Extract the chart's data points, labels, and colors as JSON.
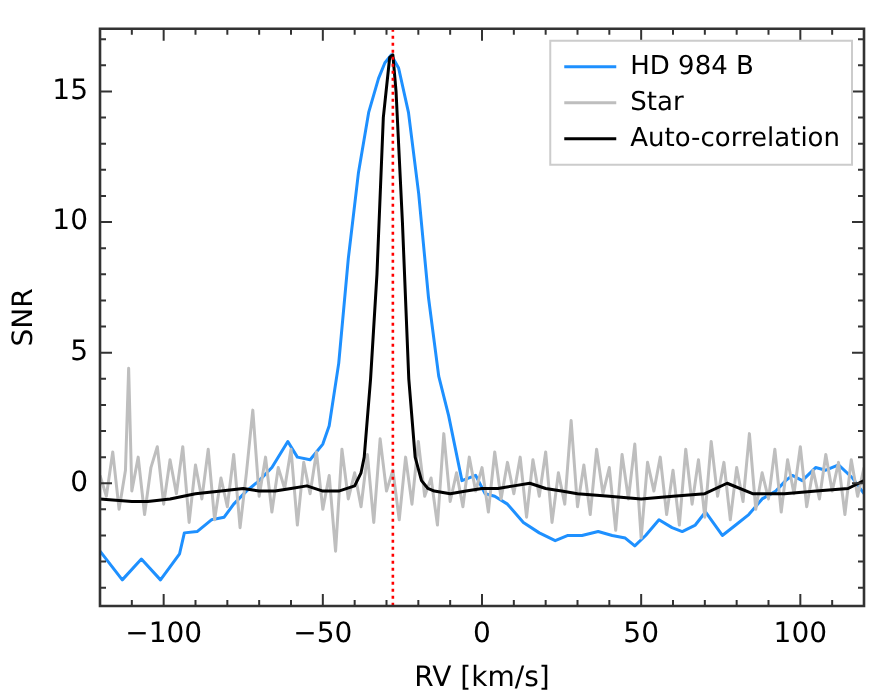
{
  "chart_data": {
    "type": "line",
    "xlabel": "RV [km/s]",
    "ylabel": "SNR",
    "xlim": [
      -120,
      120
    ],
    "ylim": [
      -4.7,
      17.4
    ],
    "xticks": [
      {
        "value": -120,
        "label": null
      },
      {
        "value": -110,
        "label": null
      },
      {
        "value": -100,
        "label": "−100"
      },
      {
        "value": -90,
        "label": null
      },
      {
        "value": -80,
        "label": null
      },
      {
        "value": -70,
        "label": null
      },
      {
        "value": -60,
        "label": null
      },
      {
        "value": -50,
        "label": "−50"
      },
      {
        "value": -40,
        "label": null
      },
      {
        "value": -30,
        "label": null
      },
      {
        "value": -20,
        "label": null
      },
      {
        "value": -10,
        "label": null
      },
      0,
      {
        "value": 10,
        "label": null
      },
      {
        "value": 20,
        "label": null
      },
      {
        "value": 30,
        "label": null
      },
      {
        "value": 40,
        "label": null
      },
      50,
      {
        "value": 60,
        "label": null
      },
      {
        "value": 70,
        "label": null
      },
      {
        "value": 80,
        "label": null
      },
      {
        "value": 90,
        "label": null
      },
      100,
      {
        "value": 110,
        "label": null
      },
      {
        "value": 120,
        "label": null
      }
    ],
    "yticks": [
      {
        "value": -4,
        "label": null
      },
      {
        "value": -3,
        "label": null
      },
      {
        "value": -2,
        "label": null
      },
      {
        "value": -1,
        "label": null
      },
      0,
      {
        "value": 1,
        "label": null
      },
      {
        "value": 2,
        "label": null
      },
      {
        "value": 3,
        "label": null
      },
      {
        "value": 4,
        "label": null
      },
      5,
      {
        "value": 6,
        "label": null
      },
      {
        "value": 7,
        "label": null
      },
      {
        "value": 8,
        "label": null
      },
      {
        "value": 9,
        "label": null
      },
      10,
      {
        "value": 11,
        "label": null
      },
      {
        "value": 12,
        "label": null
      },
      {
        "value": 13,
        "label": null
      },
      {
        "value": 14,
        "label": null
      },
      15,
      {
        "value": 16,
        "label": null
      },
      {
        "value": 17,
        "label": null
      }
    ],
    "grid": false,
    "legend": "top right",
    "marker": "none",
    "line_style": "solid",
    "series": [
      {
        "name": "HD 984 B",
        "color": "#1e90ff",
        "x": [
          -120,
          -113,
          -107,
          -101,
          -95,
          -93.5,
          -89.5,
          -85,
          -81,
          -78,
          -74,
          -70,
          -66,
          -61,
          -58,
          -54,
          -50,
          -48,
          -45,
          -42,
          -38.8,
          -35.6,
          -32.5,
          -30.5,
          -28.5,
          -26.2,
          -23.1,
          -19.9,
          -16.8,
          -13.6,
          -10.5,
          -6.3,
          -2,
          1,
          4,
          8,
          13,
          18,
          23,
          27,
          31.4,
          36.5,
          40.9,
          45,
          48,
          51.4,
          55.6,
          59.7,
          62.9,
          67,
          70.2,
          75.5,
          79.7,
          83.8,
          88,
          92.3,
          95.4,
          97.5,
          100.6,
          104.8,
          108,
          112,
          116.4,
          120
        ],
        "values": [
          -2.6,
          -3.7,
          -2.9,
          -3.7,
          -2.7,
          -1.9,
          -1.85,
          -1.4,
          -1.3,
          -0.8,
          -0.3,
          0.1,
          0.6,
          1.6,
          1.0,
          0.9,
          1.5,
          2.2,
          4.6,
          8.6,
          11.9,
          14.2,
          15.5,
          16.1,
          16.4,
          15.9,
          14.2,
          11.1,
          7.1,
          4.1,
          2.6,
          0.1,
          0.3,
          -0.4,
          -0.5,
          -0.8,
          -1.5,
          -1.9,
          -2.2,
          -2.0,
          -2.0,
          -1.85,
          -2.0,
          -2.1,
          -2.4,
          -2.0,
          -1.4,
          -1.7,
          -1.85,
          -1.6,
          -1.1,
          -2.0,
          -1.6,
          -1.2,
          -0.6,
          -0.3,
          0.1,
          0.3,
          0.1,
          0.6,
          0.5,
          0.7,
          0.2,
          -0.4
        ]
      },
      {
        "name": "Star",
        "color": "#bebebe",
        "x": [
          -120,
          -118,
          -116,
          -114,
          -112,
          -111,
          -110,
          -108,
          -106,
          -104,
          -102,
          -100,
          -98,
          -96,
          -94,
          -92,
          -90,
          -88,
          -86,
          -84,
          -82,
          -80,
          -78,
          -76,
          -74,
          -72,
          -70,
          -68,
          -66,
          -64,
          -62,
          -60,
          -58,
          -56,
          -54,
          -52,
          -50,
          -48,
          -46,
          -44,
          -42,
          -40,
          -38,
          -36,
          -34,
          -32,
          -30,
          -28,
          -26,
          -24,
          -22,
          -20,
          -18,
          -16,
          -14,
          -12,
          -10,
          -8,
          -6,
          -4,
          -2,
          0,
          2,
          4,
          6,
          8,
          10,
          12,
          14,
          16,
          18,
          20,
          22,
          24,
          26,
          28,
          30,
          32,
          34,
          36,
          38,
          40,
          42,
          44,
          46,
          48,
          50,
          52,
          54,
          56,
          58,
          60,
          62,
          64,
          66,
          68,
          70,
          72,
          74,
          76,
          78,
          80,
          82,
          84,
          86,
          88,
          90,
          92,
          94,
          96,
          98,
          100,
          102,
          104,
          106,
          108,
          110,
          112,
          114,
          116,
          118,
          120
        ],
        "values": [
          0.3,
          -0.5,
          1.2,
          -1.0,
          0.5,
          4.4,
          -0.3,
          1.0,
          -1.2,
          0.6,
          1.4,
          -0.8,
          0.9,
          -0.4,
          1.4,
          -1.5,
          0.7,
          -0.6,
          1.3,
          -1.4,
          0.2,
          -0.9,
          1.1,
          -1.7,
          0.4,
          2.8,
          -0.5,
          1.0,
          -1.1,
          0.6,
          -0.2,
          1.3,
          -1.6,
          0.8,
          -0.4,
          1.2,
          -1.0,
          0.3,
          -2.6,
          1.3,
          -0.6,
          0.4,
          -0.9,
          1.1,
          -1.5,
          1.7,
          -0.3,
          0.5,
          -1.4,
          1.0,
          -0.8,
          1.6,
          -0.5,
          0.2,
          -1.6,
          1.9,
          -0.7,
          0.4,
          -0.9,
          1.0,
          -0.3,
          0.6,
          -1.1,
          1.2,
          -0.6,
          0.8,
          -0.4,
          1.0,
          -1.3,
          0.9,
          -0.5,
          1.2,
          -1.5,
          0.4,
          -0.8,
          2.4,
          -0.9,
          0.7,
          -1.2,
          1.3,
          -0.4,
          0.6,
          -1.8,
          1.1,
          -0.6,
          1.5,
          -2.1,
          0.8,
          -0.3,
          1.0,
          -1.2,
          0.5,
          -1.6,
          1.3,
          -0.8,
          0.9,
          -1.3,
          1.6,
          -0.5,
          0.8,
          -1.4,
          0.6,
          -0.7,
          1.9,
          -1.0,
          0.4,
          -0.6,
          1.3,
          -1.1,
          0.9,
          -0.4,
          1.4,
          -0.9,
          0.5,
          -0.6,
          1.1,
          -0.3,
          0.8,
          -1.2,
          0.9,
          -0.5,
          0.6
        ]
      },
      {
        "name": "Auto-correlation",
        "color": "#000000",
        "x": [
          -120,
          -110,
          -105,
          -98,
          -90,
          -82,
          -75,
          -70,
          -65,
          -60,
          -55,
          -50,
          -45,
          -40,
          -38,
          -37,
          -35,
          -33,
          -31,
          -29,
          -28,
          -27,
          -25,
          -23,
          -21,
          -19,
          -17,
          -15,
          -10,
          -5,
          0,
          5,
          10,
          15,
          20,
          25,
          30,
          40,
          50,
          60,
          70,
          77,
          85,
          95,
          105,
          115,
          120
        ],
        "values": [
          -0.6,
          -0.7,
          -0.7,
          -0.6,
          -0.4,
          -0.3,
          -0.2,
          -0.3,
          -0.3,
          -0.2,
          -0.1,
          -0.3,
          -0.3,
          -0.1,
          0.4,
          1.0,
          4.0,
          8.0,
          14.0,
          16.3,
          16.4,
          15.0,
          10.0,
          4.0,
          1.0,
          0.1,
          -0.2,
          -0.3,
          -0.4,
          -0.3,
          -0.2,
          -0.2,
          -0.1,
          0.0,
          -0.2,
          -0.3,
          -0.4,
          -0.5,
          -0.6,
          -0.5,
          -0.4,
          0.0,
          -0.4,
          -0.4,
          -0.3,
          -0.2,
          0.1
        ]
      }
    ],
    "ref_lines": [
      {
        "axis": "x",
        "value": -28,
        "color": "#ff0000",
        "line_style": "dotted"
      }
    ]
  }
}
